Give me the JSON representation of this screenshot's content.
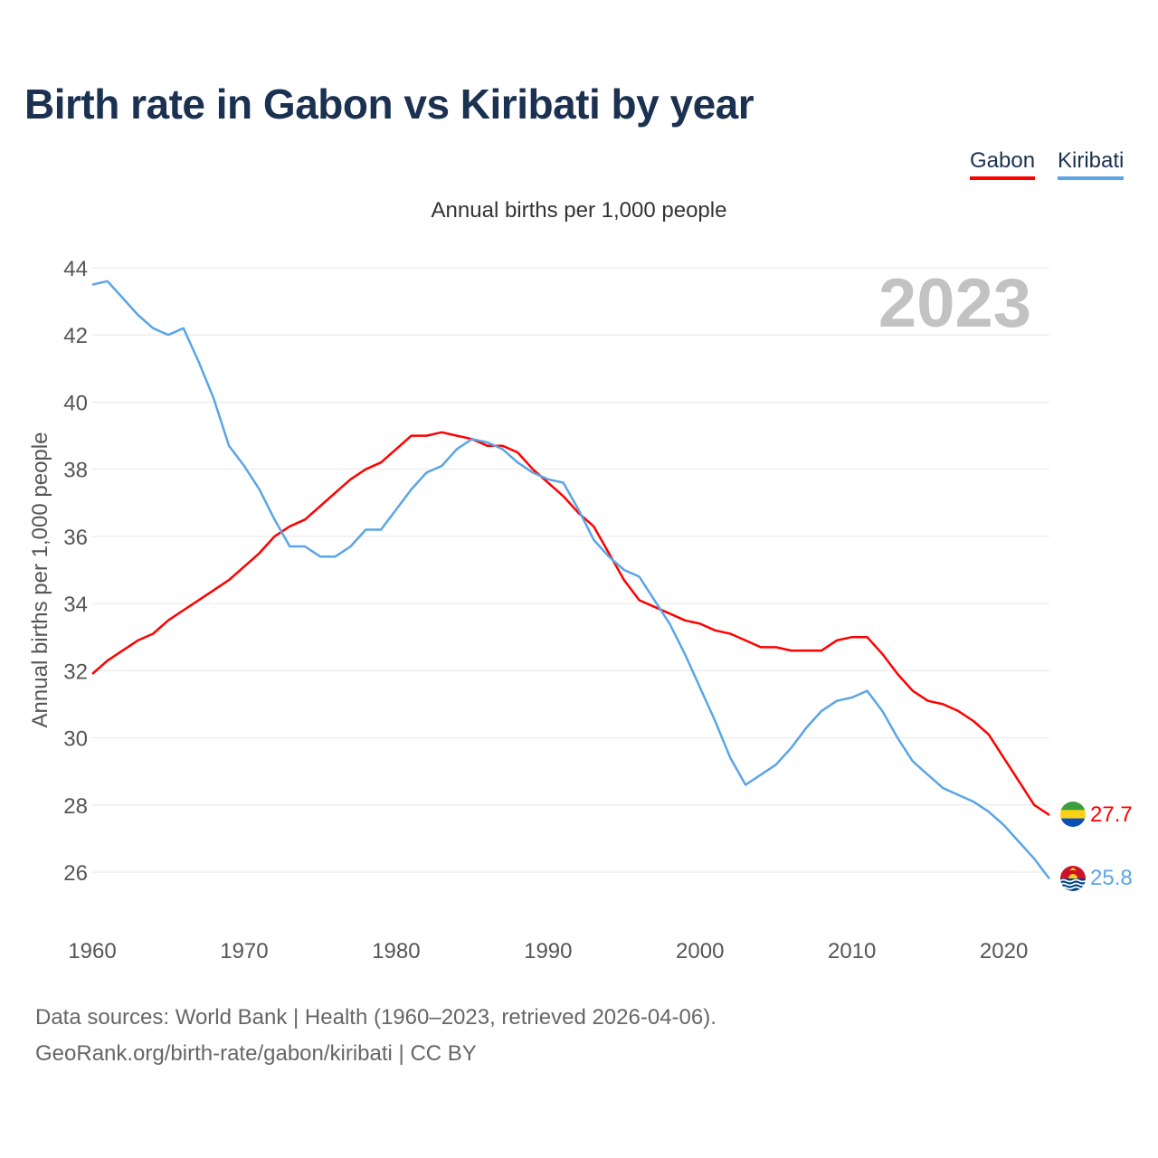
{
  "title": "Birth rate in Gabon vs Kiribati by year",
  "legend": [
    {
      "label": "Gabon",
      "color": "#ff0000"
    },
    {
      "label": "Kiribati",
      "color": "#5aa5e6"
    }
  ],
  "footer": {
    "line1": "Data sources: World Bank | Health (1960–2023, retrieved 2026-04-06).",
    "line2": "GeoRank.org/birth-rate/gabon/kiribati | CC BY"
  },
  "chart_data": {
    "type": "line",
    "title": "Birth rate in Gabon vs Kiribati by year",
    "subtitle": "Annual births per 1,000 people",
    "xlabel": "",
    "ylabel": "Annual births per 1,000 people",
    "watermark": "2023",
    "xlim": [
      1960,
      2023
    ],
    "ylim": [
      24.5,
      44
    ],
    "yticks": [
      26,
      28,
      30,
      32,
      34,
      36,
      38,
      40,
      42,
      44
    ],
    "xticks": [
      1960,
      1970,
      1980,
      1990,
      2000,
      2010,
      2020
    ],
    "grid": true,
    "legend_position": "top-right",
    "x": [
      1960,
      1961,
      1962,
      1963,
      1964,
      1965,
      1966,
      1967,
      1968,
      1969,
      1970,
      1971,
      1972,
      1973,
      1974,
      1975,
      1976,
      1977,
      1978,
      1979,
      1980,
      1981,
      1982,
      1983,
      1984,
      1985,
      1986,
      1987,
      1988,
      1989,
      1990,
      1991,
      1992,
      1993,
      1994,
      1995,
      1996,
      1997,
      1998,
      1999,
      2000,
      2001,
      2002,
      2003,
      2004,
      2005,
      2006,
      2007,
      2008,
      2009,
      2010,
      2011,
      2012,
      2013,
      2014,
      2015,
      2016,
      2017,
      2018,
      2019,
      2020,
      2021,
      2022,
      2023
    ],
    "series": [
      {
        "name": "Gabon",
        "color": "#ff0000",
        "end_label": "27.7",
        "flag": "gabon-flag-icon",
        "values": [
          31.9,
          32.3,
          32.6,
          32.9,
          33.1,
          33.5,
          33.8,
          34.1,
          34.4,
          34.7,
          35.1,
          35.5,
          36.0,
          36.3,
          36.5,
          36.9,
          37.3,
          37.7,
          38.0,
          38.2,
          38.6,
          39.0,
          39.0,
          39.1,
          39.0,
          38.9,
          38.7,
          38.7,
          38.5,
          38.0,
          37.6,
          37.2,
          36.7,
          36.3,
          35.5,
          34.7,
          34.1,
          33.9,
          33.7,
          33.5,
          33.4,
          33.2,
          33.1,
          32.9,
          32.7,
          32.7,
          32.6,
          32.6,
          32.6,
          32.9,
          33.0,
          33.0,
          32.5,
          31.9,
          31.4,
          31.1,
          31.0,
          30.8,
          30.5,
          30.1,
          29.4,
          28.7,
          28.0,
          27.7
        ]
      },
      {
        "name": "Kiribati",
        "color": "#5aa5e6",
        "end_label": "25.8",
        "flag": "kiribati-flag-icon",
        "values": [
          43.5,
          43.6,
          43.1,
          42.6,
          42.2,
          42.0,
          42.2,
          41.2,
          40.1,
          38.7,
          38.1,
          37.4,
          36.5,
          35.7,
          35.7,
          35.4,
          35.4,
          35.7,
          36.2,
          36.2,
          36.8,
          37.4,
          37.9,
          38.1,
          38.6,
          38.9,
          38.8,
          38.6,
          38.2,
          37.9,
          37.7,
          37.6,
          36.8,
          35.9,
          35.4,
          35.0,
          34.8,
          34.1,
          33.4,
          32.5,
          31.5,
          30.5,
          29.4,
          28.6,
          28.9,
          29.2,
          29.7,
          30.3,
          30.8,
          31.1,
          31.2,
          31.4,
          30.8,
          30.0,
          29.3,
          28.9,
          28.5,
          28.3,
          28.1,
          27.8,
          27.4,
          26.9,
          26.4,
          25.8
        ]
      }
    ]
  }
}
